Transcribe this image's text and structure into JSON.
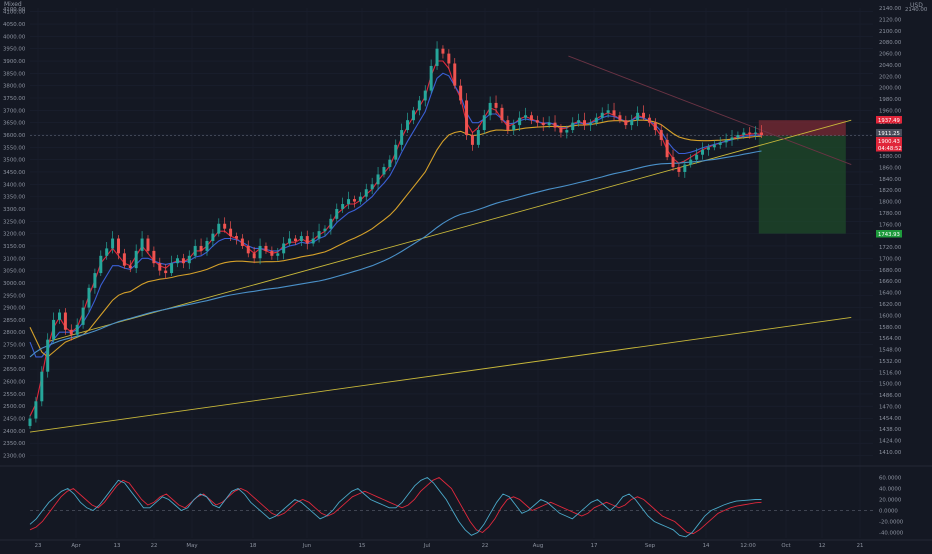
{
  "header": {
    "symbol": "Mixed",
    "currency_label": "USD",
    "top_price_left": "4100.00",
    "top_price_right": "2140.00"
  },
  "chart_data": {
    "type": "line",
    "title": "",
    "x_ticks": [
      "23",
      "Apr",
      "13",
      "22",
      "May",
      "18",
      "Jun",
      "15",
      "Jul",
      "22",
      "Aug",
      "17",
      "Sep",
      "14",
      "12:00",
      "Oct",
      "12",
      "21"
    ],
    "left_axis": {
      "ticks": [
        "4100.00",
        "4050.00",
        "4000.00",
        "3950.00",
        "3900.00",
        "3850.00",
        "3800.00",
        "3750.00",
        "3700.00",
        "3650.00",
        "3600.00",
        "3550.00",
        "3500.00",
        "3450.00",
        "3400.00",
        "3350.00",
        "3300.00",
        "3250.00",
        "3200.00",
        "3150.00",
        "3100.00",
        "3050.00",
        "3000.00",
        "2950.00",
        "2900.00",
        "2850.00",
        "2800.00",
        "2750.00",
        "2700.00",
        "2650.00",
        "2600.00",
        "2550.00",
        "2500.00",
        "2450.00",
        "2400.00",
        "2350.00",
        "2300.00"
      ],
      "ylim": [
        2290,
        4115
      ]
    },
    "right_axis": {
      "ticks": [
        "2140.00",
        "2120.00",
        "2100.00",
        "2080.00",
        "2060.00",
        "2040.00",
        "2020.00",
        "2000.00",
        "1980.00",
        "1960.00",
        "1940.00",
        "1920.00",
        "1900.00",
        "1880.00",
        "1860.00",
        "1840.00",
        "1820.00",
        "1800.00",
        "1780.00",
        "1760.00",
        "1740.00",
        "1720.00",
        "1700.00",
        "1680.00",
        "1660.00",
        "1640.00",
        "1620.00",
        "1600.00",
        "1580.00",
        "1564.00",
        "1548.00",
        "1532.00",
        "1516.00",
        "1500.00",
        "1486.00",
        "1470.00",
        "1454.00",
        "1438.00",
        "1424.00",
        "1410.00"
      ]
    },
    "price_labels": [
      {
        "text": "1937.49",
        "color": "#e0263a"
      },
      {
        "text": "1911.25",
        "color": "#4a4f5c"
      },
      {
        "text": "1900.43",
        "color": "#e0263a"
      },
      {
        "text": "04:48:52",
        "color": "#e0263a"
      },
      {
        "text": "1743.93",
        "color": "#1e9b3c"
      }
    ],
    "position": {
      "entry": 3597,
      "stop": 3660,
      "target": 3200,
      "x_from": 134,
      "x_to": 150,
      "stop_color": "#7a2a34",
      "target_color": "#1d4a2a"
    },
    "price_series": {
      "x_start": 0,
      "x_end": 134.5,
      "closes": [
        2450,
        2520,
        2640,
        2770,
        2850,
        2880,
        2810,
        2790,
        2830,
        2900,
        2980,
        3040,
        3110,
        3140,
        3180,
        3120,
        3070,
        3060,
        3130,
        3180,
        3130,
        3080,
        3050,
        3040,
        3080,
        3100,
        3080,
        3110,
        3150,
        3130,
        3170,
        3200,
        3240,
        3220,
        3190,
        3180,
        3150,
        3120,
        3100,
        3150,
        3130,
        3110,
        3120,
        3160,
        3180,
        3170,
        3190,
        3160,
        3180,
        3210,
        3220,
        3260,
        3300,
        3320,
        3340,
        3330,
        3350,
        3380,
        3400,
        3440,
        3470,
        3500,
        3560,
        3620,
        3660,
        3700,
        3740,
        3780,
        3880,
        3950,
        3930,
        3890,
        3800,
        3740,
        3600,
        3560,
        3620,
        3680,
        3730,
        3710,
        3660,
        3620,
        3640,
        3670,
        3680,
        3660,
        3650,
        3640,
        3650,
        3630,
        3610,
        3620,
        3650,
        3660,
        3640,
        3650,
        3670,
        3690,
        3700,
        3680,
        3660,
        3640,
        3660,
        3690,
        3670,
        3650,
        3620,
        3580,
        3510,
        3470,
        3450,
        3480,
        3500,
        3520,
        3540,
        3550,
        3560,
        3570,
        3580,
        3590,
        3600,
        3610,
        3605,
        3610,
        3600
      ]
    },
    "moving_averages": [
      {
        "color": "#e0283c",
        "values": [
          2460,
          2510,
          2620,
          2740,
          2820,
          2860,
          2820,
          2800,
          2820,
          2880,
          2950,
          3010,
          3080,
          3110,
          3140,
          3110,
          3080,
          3070,
          3110,
          3150,
          3120,
          3090,
          3070,
          3060,
          3080,
          3090,
          3085,
          3100,
          3130,
          3130,
          3150,
          3180,
          3210,
          3210,
          3190,
          3180,
          3160,
          3140,
          3120,
          3140,
          3130,
          3120,
          3125,
          3150,
          3165,
          3165,
          3180,
          3165,
          3175,
          3195,
          3210,
          3240,
          3280,
          3300,
          3320,
          3320,
          3335,
          3360,
          3380,
          3415,
          3445,
          3475,
          3530,
          3590,
          3635,
          3675,
          3715,
          3755,
          3840,
          3900,
          3900,
          3870,
          3800,
          3750,
          3650,
          3610,
          3630,
          3670,
          3710,
          3700,
          3665,
          3635,
          3645,
          3665,
          3675,
          3665,
          3655,
          3645,
          3650,
          3640,
          3625,
          3628,
          3645,
          3655,
          3645,
          3650,
          3665,
          3680,
          3690,
          3680,
          3665,
          3650,
          3660,
          3680,
          3670,
          3655,
          3630,
          3595,
          3540,
          3505,
          3485,
          3495,
          3510,
          3525,
          3540,
          3550,
          3560,
          3568,
          3576,
          3585,
          3594,
          3602,
          3603,
          3606,
          3602
        ]
      },
      {
        "color": "#3a5fd4",
        "values": [
          2760,
          2700,
          2700,
          2730,
          2770,
          2800,
          2800,
          2800,
          2810,
          2840,
          2880,
          2930,
          2990,
          3030,
          3070,
          3070,
          3060,
          3055,
          3075,
          3100,
          3100,
          3090,
          3080,
          3075,
          3080,
          3085,
          3085,
          3090,
          3105,
          3110,
          3125,
          3150,
          3170,
          3180,
          3180,
          3175,
          3165,
          3150,
          3140,
          3140,
          3135,
          3130,
          3130,
          3140,
          3150,
          3155,
          3165,
          3160,
          3165,
          3180,
          3190,
          3215,
          3245,
          3265,
          3285,
          3295,
          3310,
          3330,
          3350,
          3380,
          3405,
          3435,
          3480,
          3530,
          3575,
          3615,
          3655,
          3695,
          3765,
          3830,
          3850,
          3840,
          3800,
          3760,
          3690,
          3650,
          3650,
          3665,
          3685,
          3685,
          3665,
          3645,
          3648,
          3658,
          3665,
          3660,
          3655,
          3648,
          3650,
          3643,
          3632,
          3632,
          3642,
          3650,
          3645,
          3648,
          3658,
          3670,
          3678,
          3675,
          3665,
          3655,
          3660,
          3673,
          3668,
          3658,
          3640,
          3615,
          3575,
          3545,
          3525,
          3525,
          3530,
          3538,
          3548,
          3555,
          3562,
          3568,
          3574,
          3581,
          3588,
          3595,
          3597,
          3600,
          3598
        ]
      },
      {
        "color": "#d4a02a",
        "values": [
          2820,
          2770,
          2720,
          2700,
          2720,
          2740,
          2760,
          2770,
          2780,
          2790,
          2810,
          2840,
          2870,
          2900,
          2930,
          2950,
          2960,
          2965,
          2980,
          2995,
          3005,
          3010,
          3015,
          3018,
          3022,
          3028,
          3032,
          3036,
          3042,
          3048,
          3055,
          3065,
          3075,
          3082,
          3086,
          3088,
          3088,
          3086,
          3084,
          3085,
          3086,
          3086,
          3087,
          3090,
          3095,
          3100,
          3106,
          3110,
          3114,
          3120,
          3126,
          3136,
          3148,
          3160,
          3172,
          3182,
          3193,
          3206,
          3220,
          3238,
          3256,
          3275,
          3300,
          3330,
          3360,
          3390,
          3420,
          3450,
          3495,
          3540,
          3575,
          3600,
          3610,
          3615,
          3605,
          3598,
          3600,
          3606,
          3615,
          3620,
          3620,
          3618,
          3620,
          3624,
          3628,
          3630,
          3632,
          3633,
          3635,
          3635,
          3634,
          3634,
          3637,
          3640,
          3640,
          3642,
          3646,
          3651,
          3656,
          3658,
          3658,
          3656,
          3657,
          3660,
          3660,
          3658,
          3652,
          3642,
          3624,
          3606,
          3592,
          3585,
          3580,
          3578,
          3577,
          3577,
          3578,
          3579,
          3581,
          3583,
          3586,
          3589,
          3591,
          3594,
          3595
        ]
      },
      {
        "color": "#4a90c8",
        "values": [
          2700,
          2720,
          2735,
          2745,
          2755,
          2765,
          2772,
          2778,
          2784,
          2790,
          2797,
          2805,
          2814,
          2824,
          2834,
          2843,
          2850,
          2856,
          2863,
          2870,
          2877,
          2883,
          2888,
          2893,
          2898,
          2903,
          2908,
          2913,
          2918,
          2923,
          2928,
          2934,
          2940,
          2946,
          2951,
          2955,
          2959,
          2963,
          2966,
          2970,
          2974,
          2977,
          2980,
          2984,
          2988,
          2992,
          2996,
          3000,
          3004,
          3008,
          3013,
          3019,
          3026,
          3033,
          3040,
          3047,
          3054,
          3062,
          3070,
          3080,
          3090,
          3101,
          3114,
          3128,
          3143,
          3158,
          3173,
          3188,
          3206,
          3225,
          3242,
          3256,
          3268,
          3278,
          3284,
          3290,
          3298,
          3306,
          3315,
          3323,
          3330,
          3336,
          3342,
          3349,
          3356,
          3362,
          3368,
          3374,
          3380,
          3385,
          3390,
          3395,
          3401,
          3407,
          3412,
          3418,
          3424,
          3430,
          3437,
          3443,
          3448,
          3453,
          3459,
          3465,
          3471,
          3476,
          3480,
          3483,
          3484,
          3485,
          3486,
          3488,
          3490,
          3492,
          3495,
          3498,
          3501,
          3505,
          3509,
          3513,
          3517,
          3522,
          3526,
          3531,
          3535
        ]
      }
    ],
    "trendlines": [
      {
        "color": "#c8b83a",
        "from": [
          3,
          2760
        ],
        "to": [
          151,
          3660
        ]
      },
      {
        "color": "#c8b83a",
        "from": [
          0,
          2395
        ],
        "to": [
          151,
          2860
        ]
      },
      {
        "color": "#6a3344",
        "from": [
          99,
          3920
        ],
        "to": [
          151,
          3480
        ]
      }
    ],
    "current_price_line": 3597,
    "oscillator": {
      "ticks": [
        "60.0000",
        "40.0000",
        "20.0000",
        "0.0000",
        "-20.0000",
        "-40.0000"
      ],
      "ylim": [
        -50,
        70
      ],
      "zero_line": 0,
      "series": [
        {
          "color": "#e0283c",
          "values": [
            -35,
            -30,
            -20,
            -5,
            10,
            25,
            35,
            40,
            30,
            20,
            10,
            5,
            15,
            30,
            45,
            55,
            50,
            35,
            20,
            10,
            15,
            25,
            30,
            20,
            10,
            5,
            15,
            25,
            30,
            20,
            10,
            15,
            25,
            35,
            40,
            35,
            25,
            15,
            5,
            -5,
            -10,
            -5,
            5,
            15,
            20,
            15,
            5,
            -5,
            -10,
            -5,
            5,
            15,
            25,
            30,
            35,
            30,
            25,
            20,
            15,
            10,
            5,
            10,
            20,
            35,
            45,
            55,
            60,
            50,
            40,
            20,
            0,
            -20,
            -35,
            -40,
            -30,
            -15,
            5,
            20,
            25,
            20,
            10,
            0,
            5,
            10,
            15,
            10,
            5,
            0,
            -5,
            -10,
            -5,
            5,
            10,
            15,
            10,
            5,
            10,
            20,
            25,
            20,
            10,
            0,
            -10,
            -15,
            -20,
            -30,
            -40,
            -42,
            -35,
            -25,
            -15,
            -5,
            0,
            5,
            8,
            10,
            12,
            14,
            15
          ]
        },
        {
          "color": "#4aa8c8",
          "values": [
            -25,
            -15,
            0,
            15,
            25,
            35,
            40,
            30,
            15,
            5,
            0,
            10,
            25,
            40,
            55,
            50,
            35,
            20,
            5,
            5,
            15,
            25,
            20,
            10,
            0,
            5,
            20,
            30,
            25,
            10,
            5,
            20,
            35,
            40,
            30,
            15,
            5,
            -5,
            -15,
            -10,
            0,
            10,
            20,
            15,
            5,
            -5,
            -15,
            -10,
            0,
            15,
            25,
            35,
            40,
            30,
            20,
            15,
            10,
            5,
            5,
            15,
            30,
            45,
            55,
            60,
            50,
            35,
            20,
            0,
            -20,
            -35,
            -45,
            -40,
            -25,
            -5,
            15,
            30,
            25,
            10,
            -5,
            0,
            10,
            20,
            15,
            5,
            -5,
            -10,
            -15,
            -5,
            5,
            15,
            20,
            10,
            0,
            10,
            25,
            30,
            20,
            5,
            -10,
            -20,
            -25,
            -30,
            -35,
            -45,
            -48,
            -40,
            -25,
            -10,
            0,
            5,
            10,
            14,
            17,
            18,
            19,
            20,
            20
          ]
        }
      ]
    }
  }
}
